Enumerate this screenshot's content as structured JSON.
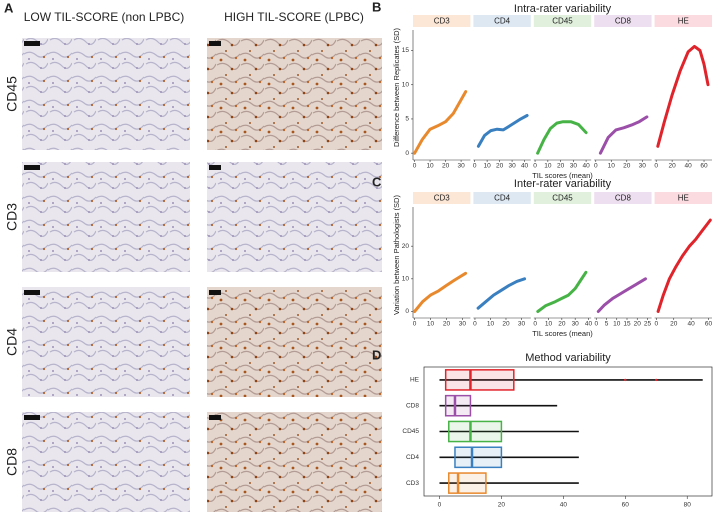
{
  "panel_a": {
    "label": "A",
    "columns": [
      "LOW TIL-SCORE (non LPBC)",
      "HIGH TIL-SCORE (LPBC)"
    ],
    "rows": [
      "CD45",
      "CD3",
      "CD4",
      "CD8"
    ]
  },
  "chart_data": [
    {
      "type": "facet-line",
      "panel_label": "B",
      "title": "Intra-rater variability",
      "xlabel": "TIL scores (mean)",
      "ylabel": "Difference between Replicates (SD)",
      "ylim": [
        -1,
        18
      ],
      "yticks": [
        0,
        5,
        10,
        15
      ],
      "facets": [
        {
          "name": "CD3",
          "color": "#e8892e",
          "strip_color": "#fce6d6",
          "xlim": [
            -1,
            36
          ],
          "xticks": [
            0,
            10,
            20,
            30
          ],
          "x": [
            0,
            5,
            10,
            15,
            20,
            25,
            30,
            33
          ],
          "values": [
            0,
            2,
            3.5,
            4,
            4.6,
            5.8,
            7.8,
            9
          ]
        },
        {
          "name": "CD4",
          "color": "#3a80c0",
          "strip_color": "#dde8f3",
          "xlim": [
            -1,
            45
          ],
          "xticks": [
            0,
            10,
            20,
            30,
            40
          ],
          "x": [
            3,
            8,
            13,
            18,
            23,
            30,
            36,
            42
          ],
          "values": [
            1,
            2.6,
            3.3,
            3.5,
            3.4,
            4.2,
            4.9,
            5.5
          ]
        },
        {
          "name": "CD45",
          "color": "#47b347",
          "strip_color": "#e0f0dd",
          "xlim": [
            -1,
            44
          ],
          "xticks": [
            0,
            10,
            20,
            30,
            40
          ],
          "x": [
            2,
            7,
            12,
            17,
            22,
            28,
            34,
            40
          ],
          "values": [
            0,
            2,
            3.6,
            4.4,
            4.6,
            4.6,
            4.2,
            3
          ]
        },
        {
          "name": "CD8",
          "color": "#9b4fa8",
          "strip_color": "#eedff0",
          "xlim": [
            -1,
            36
          ],
          "xticks": [
            0,
            10,
            20,
            30
          ],
          "x": [
            3,
            8,
            13,
            18,
            23,
            28,
            33
          ],
          "values": [
            0,
            2.3,
            3.4,
            3.7,
            4.1,
            4.6,
            5.3
          ]
        },
        {
          "name": "HE",
          "color": "#e0242b",
          "strip_color": "#fbdbe0",
          "xlim": [
            -2,
            70
          ],
          "xticks": [
            0,
            20,
            40,
            60
          ],
          "x": [
            2,
            10,
            20,
            30,
            40,
            48,
            55,
            60,
            65
          ],
          "values": [
            1,
            4.5,
            8.5,
            12,
            14.8,
            15.6,
            15,
            13,
            10
          ]
        }
      ]
    },
    {
      "type": "facet-line",
      "panel_label": "C",
      "title": "Inter-rater variability",
      "xlabel": "TIL scores (mean)",
      "ylabel": "Variation between Pathologists (SD)",
      "ylim": [
        -2,
        32
      ],
      "yticks": [
        0,
        10,
        20
      ],
      "facets": [
        {
          "name": "CD3",
          "color": "#e8892e",
          "strip_color": "#fce6d6",
          "xlim": [
            -1,
            35
          ],
          "xticks": [
            0,
            10,
            20,
            30
          ],
          "x": [
            0,
            5,
            10,
            15,
            20,
            25,
            32
          ],
          "values": [
            0,
            3,
            5,
            6.3,
            8,
            9.6,
            11.7
          ]
        },
        {
          "name": "CD4",
          "color": "#3a80c0",
          "strip_color": "#dde8f3",
          "xlim": [
            -1,
            36
          ],
          "xticks": [
            0,
            10,
            20,
            30
          ],
          "x": [
            2,
            7,
            12,
            17,
            22,
            27,
            32
          ],
          "values": [
            1,
            3,
            5,
            6.5,
            8,
            9.2,
            10
          ]
        },
        {
          "name": "CD45",
          "color": "#47b347",
          "strip_color": "#e0f0dd",
          "xlim": [
            -1,
            42
          ],
          "xticks": [
            0,
            10,
            20,
            30,
            40
          ],
          "x": [
            2,
            8,
            15,
            20,
            25,
            30,
            34,
            38
          ],
          "values": [
            0,
            1.8,
            3,
            4,
            5,
            7,
            9.5,
            12
          ]
        },
        {
          "name": "CD8",
          "color": "#9b4fa8",
          "strip_color": "#eedff0",
          "xlim": [
            -1,
            27
          ],
          "xticks": [
            0,
            5,
            10,
            15,
            20,
            25
          ],
          "x": [
            1,
            4,
            8,
            12,
            16,
            20,
            24
          ],
          "values": [
            0,
            2,
            4,
            5.5,
            7,
            8.5,
            10
          ]
        },
        {
          "name": "HE",
          "color": "#e0242b",
          "strip_color": "#fbdbe0",
          "xlim": [
            -2,
            64
          ],
          "xticks": [
            0,
            20,
            40,
            60
          ],
          "x": [
            2,
            8,
            15,
            22,
            30,
            38,
            45,
            52,
            62
          ],
          "values": [
            0,
            5,
            10,
            13.5,
            17,
            20,
            22,
            24.5,
            28
          ]
        }
      ]
    },
    {
      "type": "boxplot",
      "panel_label": "D",
      "title": "Method variability",
      "xlim": [
        -5,
        88
      ],
      "xticks": [
        0,
        20,
        40,
        60,
        80
      ],
      "boxes": [
        {
          "name": "HE",
          "color": "#e0242b",
          "min": 0,
          "q1": 2,
          "median": 10,
          "q3": 24,
          "max": 85,
          "outliers": [
            60,
            70
          ]
        },
        {
          "name": "CD8",
          "color": "#9b4fa8",
          "min": 0,
          "q1": 2,
          "median": 5,
          "q3": 10,
          "max": 38,
          "outliers": []
        },
        {
          "name": "CD45",
          "color": "#47b347",
          "min": 0,
          "q1": 3,
          "median": 10,
          "q3": 20,
          "max": 45,
          "outliers": []
        },
        {
          "name": "CD4",
          "color": "#3a80c0",
          "min": 0,
          "q1": 5,
          "median": 10.5,
          "q3": 20,
          "max": 45,
          "outliers": []
        },
        {
          "name": "CD3",
          "color": "#e8892e",
          "min": 0,
          "q1": 3,
          "median": 6,
          "q3": 15,
          "max": 45,
          "outliers": []
        }
      ]
    }
  ]
}
